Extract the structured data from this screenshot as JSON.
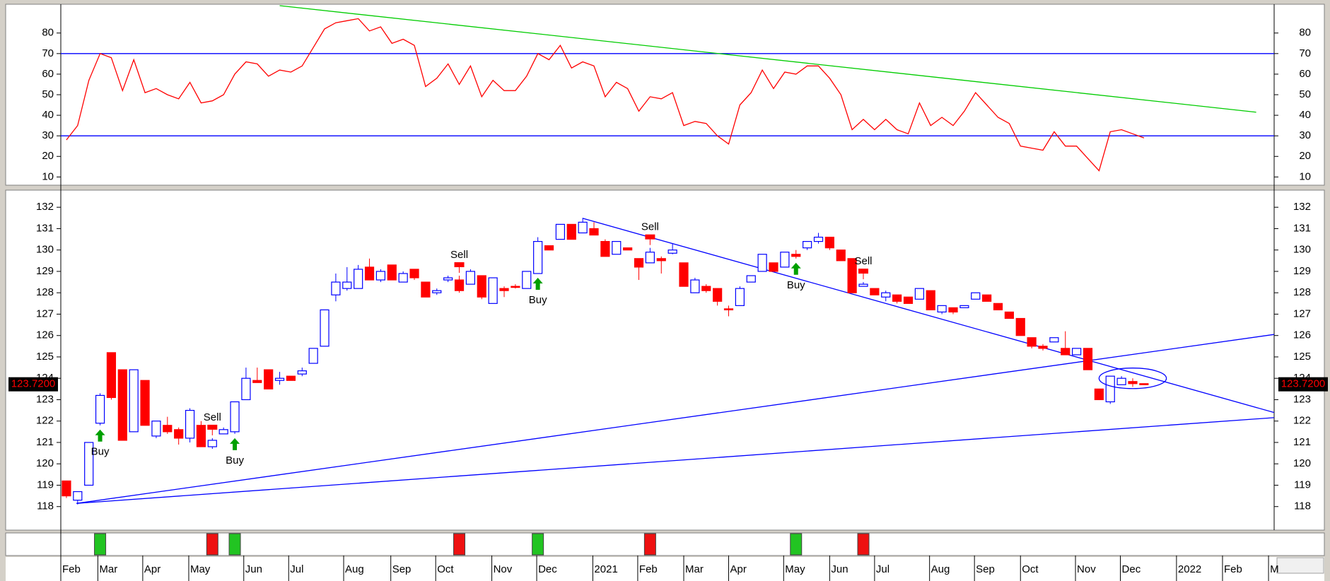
{
  "chart_data": [
    {
      "type": "line",
      "color": "#ff0000",
      "ylim": [
        6,
        94
      ],
      "yticks": [
        10,
        20,
        30,
        40,
        50,
        60,
        70,
        80
      ],
      "hlines": [
        70,
        30
      ],
      "hline_color": "#0000ff",
      "trendlines": [
        {
          "from": [
            19,
            93.3
          ],
          "to": [
            106,
            41.5
          ],
          "color": "#00cc00"
        }
      ],
      "values": [
        28,
        35,
        57,
        70,
        68,
        52,
        67,
        51,
        53,
        50,
        48,
        56,
        46,
        47,
        50,
        60,
        66,
        65,
        59,
        62,
        61,
        64,
        73,
        82,
        85,
        86,
        87,
        81,
        83,
        75,
        77,
        74,
        54,
        58,
        65,
        55,
        64,
        49,
        57,
        52,
        52,
        59,
        70,
        67,
        74,
        63,
        66,
        64,
        49,
        56,
        53,
        42,
        49,
        48,
        51,
        35,
        37,
        36,
        30,
        26,
        45,
        51,
        62,
        53,
        61,
        60,
        64,
        64,
        58,
        50,
        33,
        38,
        33,
        38,
        33,
        31,
        46,
        35,
        39,
        35,
        42,
        51,
        45,
        39,
        36,
        25,
        24,
        23,
        32,
        25,
        25,
        19,
        13,
        32,
        33,
        31,
        29
      ]
    },
    {
      "type": "candlestick",
      "up_color": "#0000ff",
      "down_color": "#ff0000",
      "ylim": [
        116.9,
        132.8
      ],
      "yticks": [
        118,
        119,
        120,
        121,
        122,
        123,
        124,
        125,
        126,
        127,
        128,
        129,
        130,
        131,
        132
      ],
      "xlim": [
        -0.5,
        107.6
      ],
      "xticks": [
        {
          "value": -0.5,
          "label": "Feb"
        },
        {
          "value": 2.8,
          "label": "Mar"
        },
        {
          "value": 6.8,
          "label": "Apr"
        },
        {
          "value": 10.9,
          "label": "May"
        },
        {
          "value": 15.8,
          "label": "Jun"
        },
        {
          "value": 19.8,
          "label": "Jul"
        },
        {
          "value": 24.7,
          "label": "Aug"
        },
        {
          "value": 28.9,
          "label": "Sep"
        },
        {
          "value": 32.9,
          "label": "Oct"
        },
        {
          "value": 37.9,
          "label": "Nov"
        },
        {
          "value": 41.9,
          "label": "Dec"
        },
        {
          "value": 46.9,
          "label": "2021"
        },
        {
          "value": 50.9,
          "label": "Feb"
        },
        {
          "value": 55.0,
          "label": "Mar"
        },
        {
          "value": 59.0,
          "label": "Apr"
        },
        {
          "value": 63.9,
          "label": "May"
        },
        {
          "value": 68.0,
          "label": "Jun"
        },
        {
          "value": 72.0,
          "label": "Jul"
        },
        {
          "value": 76.9,
          "label": "Aug"
        },
        {
          "value": 80.9,
          "label": "Sep"
        },
        {
          "value": 85.0,
          "label": "Oct"
        },
        {
          "value": 89.9,
          "label": "Nov"
        },
        {
          "value": 93.9,
          "label": "Dec"
        },
        {
          "value": 98.9,
          "label": "2022"
        },
        {
          "value": 103.0,
          "label": "Feb"
        },
        {
          "value": 107.1,
          "label": "M"
        }
      ],
      "price_marker": {
        "value": 123.72,
        "label": "123.7200"
      },
      "trendlines": [
        {
          "from": [
            0.9,
            118.15
          ],
          "to": [
            107.6,
            126.05
          ],
          "color": "#0000ff"
        },
        {
          "from": [
            0.9,
            118.15
          ],
          "to": [
            107.6,
            122.16
          ],
          "color": "#0000ff"
        },
        {
          "from": [
            46,
            131.48
          ],
          "to": [
            107.6,
            122.4
          ],
          "color": "#0000ff"
        }
      ],
      "ellipse": {
        "center": [
          95,
          124.0
        ],
        "rx": 3,
        "ry": 0.48,
        "color": "#0000ff"
      },
      "signals": [
        {
          "index": 3,
          "label": "Buy"
        },
        {
          "index": 13,
          "label": "Sell"
        },
        {
          "index": 15,
          "label": "Buy"
        },
        {
          "index": 35,
          "label": "Sell"
        },
        {
          "index": 42,
          "label": "Buy"
        },
        {
          "index": 52,
          "label": "Sell"
        },
        {
          "index": 65,
          "label": "Buy"
        },
        {
          "index": 71,
          "label": "Sell"
        }
      ],
      "open": [
        119.2,
        118.3,
        119.0,
        121.9,
        125.2,
        124.4,
        121.5,
        123.9,
        121.3,
        121.8,
        121.6,
        121.2,
        121.8,
        120.8,
        121.4,
        121.5,
        123.0,
        123.9,
        124.4,
        123.9,
        124.1,
        124.2,
        124.7,
        125.5,
        127.9,
        128.2,
        128.2,
        129.2,
        128.6,
        129.3,
        128.5,
        129.1,
        128.5,
        128.0,
        128.6,
        128.6,
        128.4,
        128.8,
        127.5,
        128.2,
        128.3,
        128.2,
        128.9,
        130.2,
        130.5,
        131.2,
        130.8,
        131.0,
        130.4,
        129.8,
        130.1,
        129.6,
        129.4,
        129.6,
        129.85,
        129.4,
        128.0,
        128.3,
        128.2,
        127.25,
        127.4,
        128.5,
        129.0,
        129.4,
        129.2,
        129.8,
        130.1,
        130.4,
        130.6,
        130.0,
        129.6,
        128.3,
        128.2,
        127.8,
        127.9,
        127.8,
        127.7,
        128.1,
        127.1,
        127.3,
        127.3,
        127.7,
        127.9,
        127.5,
        127.1,
        126.8,
        125.9,
        125.5,
        125.7,
        125.4,
        125.1,
        125.4,
        123.5,
        122.9,
        123.7,
        123.85,
        123.75
      ],
      "high": [
        119.2,
        118.7,
        121.0,
        123.3,
        125.2,
        124.4,
        124.4,
        123.9,
        122.0,
        122.2,
        121.7,
        122.6,
        122.0,
        121.2,
        121.7,
        122.9,
        124.5,
        124.5,
        124.4,
        124.3,
        124.1,
        124.5,
        125.4,
        127.2,
        128.9,
        129.2,
        129.3,
        129.6,
        129.1,
        129.3,
        129.0,
        129.1,
        128.5,
        128.2,
        128.8,
        128.8,
        129.1,
        128.8,
        128.7,
        128.3,
        128.4,
        129.0,
        130.6,
        130.2,
        131.2,
        131.2,
        131.5,
        131.3,
        130.5,
        130.4,
        130.1,
        129.6,
        130.1,
        129.7,
        130.3,
        129.4,
        128.7,
        128.4,
        128.2,
        127.4,
        128.3,
        128.8,
        129.8,
        129.4,
        129.9,
        130.0,
        130.4,
        130.8,
        130.6,
        130.0,
        129.6,
        128.5,
        128.2,
        128.1,
        127.9,
        127.8,
        128.2,
        128.1,
        127.4,
        127.3,
        127.4,
        128.0,
        127.9,
        127.5,
        127.1,
        126.8,
        125.9,
        125.6,
        125.9,
        126.2,
        125.4,
        125.4,
        123.5,
        124.1,
        124.1,
        124.0,
        123.75
      ],
      "low": [
        118.4,
        118.1,
        119.0,
        121.8,
        123.0,
        121.1,
        121.5,
        121.8,
        121.2,
        121.4,
        120.9,
        121.0,
        120.8,
        120.7,
        121.4,
        121.4,
        123.0,
        123.8,
        123.5,
        123.7,
        123.9,
        124.1,
        124.7,
        125.5,
        127.6,
        128.1,
        128.2,
        128.6,
        128.5,
        128.6,
        128.5,
        128.6,
        127.8,
        127.9,
        128.5,
        128.0,
        128.4,
        127.7,
        127.5,
        127.8,
        128.2,
        128.2,
        128.9,
        130.0,
        130.5,
        130.5,
        130.8,
        130.7,
        129.7,
        129.8,
        130.0,
        128.6,
        129.4,
        128.9,
        129.8,
        128.3,
        128.0,
        128.0,
        127.4,
        126.9,
        127.4,
        128.5,
        129.0,
        129.0,
        129.2,
        129.6,
        130.0,
        130.3,
        130.0,
        129.5,
        128.0,
        128.3,
        127.9,
        127.6,
        127.5,
        127.5,
        127.7,
        127.2,
        127.0,
        127.0,
        127.3,
        127.7,
        127.6,
        127.2,
        126.8,
        126.0,
        125.4,
        125.3,
        125.7,
        125.1,
        125.1,
        124.4,
        123.0,
        122.8,
        123.7,
        123.6,
        123.7
      ],
      "close": [
        118.5,
        118.7,
        121.0,
        123.2,
        123.1,
        121.1,
        124.4,
        121.8,
        122.0,
        121.5,
        121.2,
        122.5,
        120.8,
        121.1,
        121.6,
        122.9,
        124.0,
        123.8,
        123.5,
        124.0,
        123.9,
        124.35,
        125.4,
        127.2,
        128.5,
        128.5,
        129.1,
        128.6,
        129.0,
        128.6,
        128.9,
        128.7,
        127.8,
        128.1,
        128.7,
        128.1,
        129.0,
        127.8,
        128.7,
        128.1,
        128.25,
        129.0,
        130.4,
        130.0,
        131.2,
        130.5,
        131.3,
        130.7,
        129.7,
        130.4,
        130.0,
        129.2,
        129.9,
        129.5,
        130.0,
        128.3,
        128.6,
        128.1,
        127.6,
        127.2,
        128.2,
        128.8,
        129.8,
        129.0,
        129.9,
        129.7,
        130.4,
        130.6,
        130.1,
        129.5,
        128.0,
        128.4,
        127.9,
        128.0,
        127.6,
        127.5,
        128.2,
        127.2,
        127.4,
        127.1,
        127.4,
        128.0,
        127.6,
        127.2,
        126.8,
        126.0,
        125.5,
        125.4,
        125.9,
        125.1,
        125.4,
        124.4,
        123.0,
        124.1,
        124.0,
        123.75,
        123.7
      ]
    }
  ]
}
